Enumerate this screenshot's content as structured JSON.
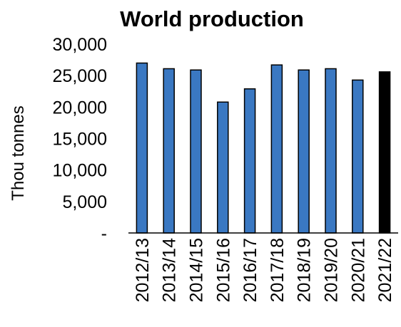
{
  "chart_data": {
    "type": "bar",
    "title": "World production",
    "xlabel": "",
    "ylabel": "Thou tonnes",
    "ylim": [
      0,
      30000
    ],
    "yticks": [
      0,
      5000,
      10000,
      15000,
      20000,
      25000,
      30000
    ],
    "ytick_labels": [
      "-",
      "5,000",
      "10,000",
      "15,000",
      "20,000",
      "25,000",
      "30,000"
    ],
    "categories": [
      "2012/13",
      "2013/14",
      "2014/15",
      "2015/16",
      "2016/17",
      "2017/18",
      "2018/19",
      "2019/20",
      "2020/21",
      "2021/22"
    ],
    "values": [
      27000,
      26100,
      25900,
      20800,
      22900,
      26700,
      25900,
      26100,
      24300,
      25600
    ],
    "colors": {
      "bar": "#3a78c2",
      "highlight": "#000000",
      "outline": "#000000"
    },
    "highlighted_category": "2021/22",
    "grid": false,
    "legend": "none"
  }
}
